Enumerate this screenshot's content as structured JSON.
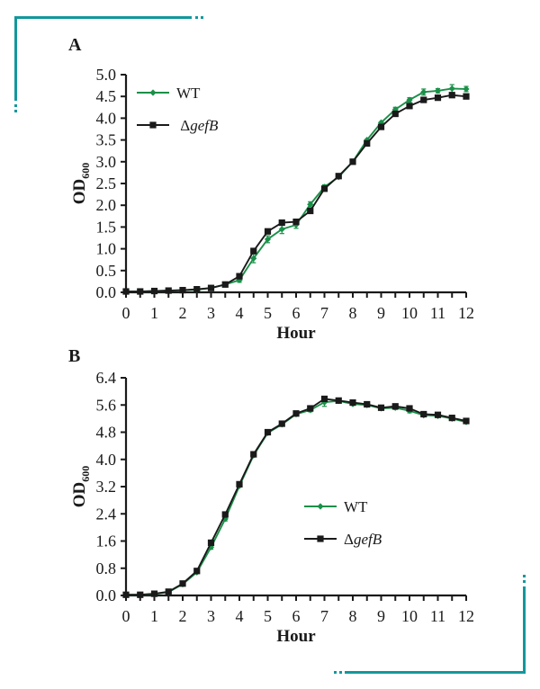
{
  "figure": {
    "background": "#ffffff",
    "text_color": "#1a1a1a",
    "accent_teal": "#12989c"
  },
  "labels": {
    "panel_a": "A",
    "panel_b": "B",
    "xlabel": "Hour",
    "ylabel_main": "OD",
    "ylabel_sub": "600",
    "legend_wt": "WT",
    "legend_mutant_prefix": "Δ",
    "legend_mutant_gene": "gefB"
  },
  "chart_data": [
    {
      "type": "line",
      "panel_label": "A",
      "xlabel": "Hour",
      "ylabel": "OD600",
      "xlim": [
        0,
        12
      ],
      "ylim": [
        0,
        5
      ],
      "ytick_step": 0.5,
      "xtick_label_step": 1,
      "xtick_minor_step": 0.5,
      "grid": false,
      "legend_position": "upper-left-inside",
      "x": [
        0,
        0.5,
        1,
        1.5,
        2,
        2.5,
        3,
        3.5,
        4,
        4.5,
        5,
        5.5,
        6,
        6.5,
        7,
        7.5,
        8,
        8.5,
        9,
        9.5,
        10,
        10.5,
        11,
        11.5,
        12
      ],
      "series": [
        {
          "name": "WT",
          "color": "#1a9048",
          "marker": "diamond",
          "values": [
            0.02,
            0.02,
            0.03,
            0.04,
            0.05,
            0.06,
            0.1,
            0.18,
            0.28,
            0.78,
            1.22,
            1.45,
            1.55,
            2.02,
            2.42,
            2.65,
            3.0,
            3.5,
            3.9,
            4.2,
            4.42,
            4.6,
            4.63,
            4.68,
            4.67
          ],
          "errors": [
            0,
            0,
            0,
            0,
            0,
            0,
            0,
            0,
            0.05,
            0.1,
            0.08,
            0.1,
            0.08,
            0.06,
            0.05,
            0,
            0,
            0,
            0,
            0.05,
            0.05,
            0.07,
            0.05,
            0.09,
            0.06
          ]
        },
        {
          "name": "ΔgefB",
          "display_prefix": "Δ",
          "display_gene": "gefB",
          "color": "#1a1a1a",
          "marker": "square",
          "values": [
            0.02,
            0.02,
            0.03,
            0.04,
            0.05,
            0.07,
            0.1,
            0.18,
            0.37,
            0.95,
            1.4,
            1.6,
            1.62,
            1.87,
            2.38,
            2.67,
            3.0,
            3.42,
            3.8,
            4.1,
            4.28,
            4.42,
            4.47,
            4.53,
            4.5
          ],
          "errors": [
            0,
            0,
            0,
            0,
            0,
            0,
            0,
            0,
            0,
            0,
            0,
            0,
            0,
            0,
            0,
            0,
            0,
            0,
            0,
            0,
            0,
            0,
            0,
            0,
            0
          ]
        }
      ]
    },
    {
      "type": "line",
      "panel_label": "B",
      "xlabel": "Hour",
      "ylabel": "OD600",
      "xlim": [
        0,
        12
      ],
      "ylim": [
        0,
        6.4
      ],
      "ytick_step": 0.8,
      "xtick_label_step": 1,
      "xtick_minor_step": 0.5,
      "grid": false,
      "legend_position": "middle-right-inside",
      "x": [
        0,
        0.5,
        1,
        1.5,
        2,
        2.5,
        3,
        3.5,
        4,
        4.5,
        5,
        5.5,
        6,
        6.5,
        7,
        7.5,
        8,
        8.5,
        9,
        9.5,
        10,
        10.5,
        11,
        11.5,
        12
      ],
      "series": [
        {
          "name": "WT",
          "color": "#1a9048",
          "marker": "diamond",
          "values": [
            0.02,
            0.02,
            0.04,
            0.1,
            0.33,
            0.68,
            1.42,
            2.25,
            3.22,
            4.12,
            4.78,
            5.03,
            5.33,
            5.45,
            5.68,
            5.72,
            5.63,
            5.6,
            5.5,
            5.52,
            5.43,
            5.3,
            5.28,
            5.2,
            5.1
          ],
          "errors": [
            0,
            0,
            0,
            0,
            0,
            0,
            0.06,
            0.06,
            0,
            0,
            0,
            0,
            0,
            0.05,
            0.12,
            0,
            0,
            0,
            0,
            0.05,
            0.06,
            0,
            0,
            0,
            0
          ]
        },
        {
          "name": "ΔgefB",
          "display_prefix": "Δ",
          "display_gene": "gefB",
          "color": "#1a1a1a",
          "marker": "square",
          "values": [
            0.02,
            0.02,
            0.05,
            0.11,
            0.35,
            0.72,
            1.55,
            2.38,
            3.27,
            4.15,
            4.8,
            5.05,
            5.35,
            5.5,
            5.78,
            5.73,
            5.67,
            5.62,
            5.52,
            5.56,
            5.5,
            5.33,
            5.31,
            5.22,
            5.13
          ],
          "errors": [
            0,
            0,
            0,
            0,
            0,
            0,
            0,
            0,
            0,
            0,
            0,
            0,
            0,
            0,
            0,
            0,
            0,
            0,
            0,
            0,
            0,
            0,
            0,
            0,
            0
          ]
        }
      ]
    }
  ]
}
